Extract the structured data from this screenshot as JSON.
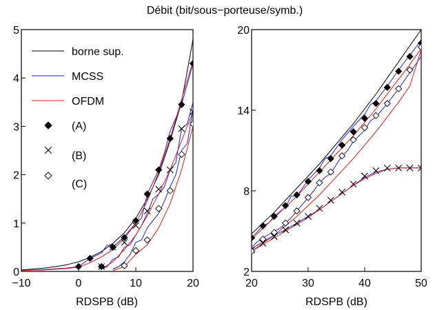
{
  "figure": {
    "title": "Débit (bit/sous−porteuse/symb.)"
  },
  "legend": {
    "items": [
      {
        "key": "bound",
        "label": "borne sup.",
        "kind": "line",
        "color": "#000000"
      },
      {
        "key": "mcss",
        "label": "MCSS",
        "kind": "line",
        "color": "#1f1fdc"
      },
      {
        "key": "ofdm",
        "label": "OFDM",
        "kind": "line",
        "color": "#e01818"
      },
      {
        "key": "A",
        "label": "(A)",
        "kind": "marker",
        "marker": "diamond-filled"
      },
      {
        "key": "B",
        "label": "(B)",
        "kind": "marker",
        "marker": "cross"
      },
      {
        "key": "C",
        "label": "(C)",
        "kind": "marker",
        "marker": "diamond-open"
      }
    ]
  },
  "chart_data": [
    {
      "type": "line",
      "xlabel": "RDSPB (dB)",
      "ylabel": "",
      "xlim": [
        -10,
        20
      ],
      "ylim": [
        0,
        5
      ],
      "xticks": [
        -10,
        0,
        10,
        20
      ],
      "xtick_labels": [
        "−10",
        "0",
        "10",
        "20"
      ],
      "yticks": [
        0,
        1,
        2,
        3,
        4,
        5
      ],
      "ytick_labels": [
        "0",
        "1",
        "2",
        "3",
        "4",
        "5"
      ],
      "grid": false,
      "legend_position": "top-left",
      "series": [
        {
          "key": "bound",
          "color": "#000000",
          "x": [
            -10,
            -8,
            -6,
            -4,
            -2,
            0,
            2,
            4,
            6,
            8,
            10,
            12,
            14,
            16,
            18,
            20
          ],
          "y": [
            0.03,
            0.05,
            0.07,
            0.1,
            0.14,
            0.2,
            0.29,
            0.41,
            0.58,
            0.8,
            1.1,
            1.5,
            2.0,
            2.7,
            3.5,
            4.8
          ]
        },
        {
          "key": "A_mcss",
          "color": "#1f1fdc",
          "x": [
            -10,
            -6,
            -2,
            0,
            2,
            4,
            5,
            6,
            8,
            10,
            11,
            12,
            14,
            15,
            16,
            18,
            20
          ],
          "y": [
            0.02,
            0.04,
            0.07,
            0.1,
            0.27,
            0.38,
            0.55,
            0.5,
            0.72,
            1.0,
            1.1,
            1.6,
            2.1,
            2.45,
            2.9,
            3.45,
            4.3
          ]
        },
        {
          "key": "A_ofdm",
          "color": "#e01818",
          "x": [
            -10,
            -6,
            -2,
            0,
            2,
            4,
            6,
            8,
            10,
            12,
            14,
            16,
            18,
            20
          ],
          "y": [
            0.02,
            0.03,
            0.06,
            0.09,
            0.18,
            0.3,
            0.45,
            0.68,
            1.0,
            1.45,
            2.05,
            2.75,
            3.55,
            4.35
          ]
        },
        {
          "key": "B_mcss",
          "color": "#1f1fdc",
          "x": [
            4,
            5,
            6,
            7,
            8,
            9,
            10,
            11,
            12,
            13,
            14,
            15,
            16,
            17,
            18,
            19,
            20
          ],
          "y": [
            0.05,
            0.1,
            0.25,
            0.3,
            0.5,
            0.55,
            0.75,
            0.95,
            1.2,
            1.5,
            1.6,
            1.75,
            2.1,
            2.25,
            2.95,
            3.05,
            3.5
          ]
        },
        {
          "key": "B_ofdm",
          "color": "#e01818",
          "x": [
            4,
            6,
            8,
            10,
            12,
            14,
            16,
            18,
            20
          ],
          "y": [
            0.05,
            0.2,
            0.45,
            0.75,
            1.15,
            1.6,
            2.1,
            2.7,
            3.3
          ]
        },
        {
          "key": "C_mcss",
          "color": "#1f1fdc",
          "x": [
            6,
            7,
            8,
            9,
            10,
            11,
            12,
            13,
            14,
            15,
            16,
            17,
            18,
            19,
            20
          ],
          "y": [
            0.05,
            0.1,
            0.2,
            0.35,
            0.6,
            0.65,
            0.9,
            1.05,
            1.2,
            1.45,
            1.75,
            2.0,
            2.5,
            2.65,
            3.35
          ]
        },
        {
          "key": "C_ofdm",
          "color": "#e01818",
          "x": [
            6,
            8,
            10,
            12,
            14,
            16,
            18,
            20
          ],
          "y": [
            0.02,
            0.1,
            0.35,
            0.55,
            0.9,
            1.4,
            2.1,
            3.0
          ]
        }
      ],
      "markers": [
        {
          "key": "A",
          "marker": "diamond-filled",
          "x": [
            0,
            2,
            4,
            6,
            8,
            10,
            12,
            14,
            16,
            18,
            20
          ],
          "y": [
            0.1,
            0.27,
            0.1,
            0.5,
            0.7,
            1.05,
            1.6,
            2.1,
            2.75,
            3.45,
            4.3
          ]
        },
        {
          "key": "B",
          "marker": "cross",
          "x": [
            4,
            6,
            8,
            10,
            12,
            14,
            16,
            18,
            20
          ],
          "y": [
            0.1,
            0.5,
            0.6,
            0.95,
            1.25,
            1.7,
            2.1,
            2.95,
            3.3
          ]
        },
        {
          "key": "C",
          "marker": "diamond-open",
          "x": [
            8,
            10,
            12,
            14,
            16,
            18,
            20
          ],
          "y": [
            0.12,
            0.43,
            0.65,
            1.3,
            1.67,
            2.42,
            3.05
          ]
        }
      ]
    },
    {
      "type": "line",
      "xlabel": "RDSPB (dB)",
      "ylabel": "",
      "xlim": [
        20,
        50
      ],
      "ylim": [
        2,
        20
      ],
      "xticks": [
        20,
        30,
        40,
        50
      ],
      "xtick_labels": [
        "20",
        "30",
        "40",
        "50"
      ],
      "yticks": [
        2,
        8,
        14,
        20
      ],
      "ytick_labels": [
        "2",
        "8",
        "14",
        "20"
      ],
      "grid": false,
      "series": [
        {
          "key": "bound",
          "color": "#000000",
          "x": [
            20,
            22,
            24,
            26,
            28,
            30,
            32,
            34,
            36,
            38,
            40,
            42,
            44,
            46,
            48,
            50
          ],
          "y": [
            4.8,
            5.6,
            6.4,
            7.3,
            8.2,
            9.1,
            10.0,
            11.0,
            12.0,
            13.0,
            14.1,
            15.2,
            16.4,
            17.6,
            18.8,
            20.0
          ]
        },
        {
          "key": "A_mcss",
          "color": "#1f1fdc",
          "x": [
            20,
            22,
            23,
            24,
            26,
            27,
            28,
            30,
            32,
            33,
            34,
            36,
            38,
            40,
            41,
            42,
            44,
            46,
            48,
            50
          ],
          "y": [
            4.5,
            5.4,
            5.6,
            6.1,
            6.8,
            7.6,
            7.6,
            8.8,
            9.7,
            10.4,
            10.6,
            11.8,
            12.8,
            13.7,
            14.4,
            14.7,
            15.8,
            17.0,
            18.1,
            19.2
          ]
        },
        {
          "key": "A_ofdm",
          "color": "#e01818",
          "x": [
            20,
            22,
            24,
            26,
            28,
            30,
            32,
            34,
            36,
            38,
            40,
            42,
            44,
            46,
            48,
            50
          ],
          "y": [
            4.4,
            5.2,
            6.0,
            6.8,
            7.6,
            8.5,
            9.4,
            10.3,
            11.2,
            12.1,
            13.1,
            14.1,
            15.2,
            16.3,
            17.4,
            18.6
          ]
        },
        {
          "key": "C_mcss",
          "color": "#1f1fdc",
          "x": [
            20,
            21,
            22,
            24,
            25,
            26,
            27,
            28,
            30,
            31,
            32,
            33,
            34,
            36,
            37,
            38,
            40,
            41,
            42,
            44,
            46,
            48,
            50
          ],
          "y": [
            3.8,
            4.2,
            4.5,
            5.0,
            5.2,
            5.6,
            6.0,
            6.5,
            7.5,
            8.0,
            8.6,
            9.0,
            9.3,
            10.6,
            11.0,
            11.7,
            12.5,
            13.2,
            13.5,
            14.5,
            15.6,
            16.8,
            18.0
          ]
        },
        {
          "key": "C_ofdm",
          "color": "#e01818",
          "x": [
            20,
            22,
            24,
            26,
            28,
            30,
            32,
            34,
            36,
            38,
            40,
            42,
            44,
            46,
            48,
            50
          ],
          "y": [
            3.5,
            4.1,
            4.7,
            5.4,
            6.1,
            6.9,
            7.7,
            8.6,
            9.5,
            10.4,
            11.4,
            12.4,
            13.5,
            14.6,
            15.8,
            18.5
          ]
        },
        {
          "key": "B_mcss",
          "color": "#1f1fdc",
          "x": [
            20,
            22,
            24,
            26,
            28,
            30,
            32,
            34,
            36,
            38,
            40,
            42,
            44,
            46,
            48,
            50
          ],
          "y": [
            3.7,
            4.2,
            4.7,
            5.1,
            5.6,
            6.1,
            6.6,
            7.2,
            7.8,
            8.4,
            9.0,
            9.4,
            9.6,
            9.7,
            9.7,
            9.7
          ]
        },
        {
          "key": "B_ofdm",
          "color": "#e01818",
          "x": [
            20,
            22,
            24,
            26,
            28,
            30,
            32,
            34,
            36,
            38,
            40,
            42,
            44,
            46,
            48,
            50
          ],
          "y": [
            3.5,
            4.0,
            4.5,
            5.0,
            5.5,
            6.0,
            6.6,
            7.2,
            7.8,
            8.4,
            8.9,
            9.3,
            9.6,
            9.7,
            9.7,
            9.7
          ]
        }
      ],
      "markers": [
        {
          "key": "A",
          "marker": "diamond-filled",
          "x": [
            20,
            22,
            24,
            26,
            28,
            30,
            32,
            34,
            36,
            38,
            40,
            42,
            44,
            46,
            48,
            50
          ],
          "y": [
            4.5,
            5.4,
            6.1,
            6.9,
            7.7,
            8.7,
            9.5,
            10.4,
            11.4,
            12.4,
            13.4,
            14.5,
            15.7,
            16.9,
            18.0,
            19.0
          ]
        },
        {
          "key": "B",
          "marker": "cross",
          "x": [
            20,
            22,
            24,
            26,
            28,
            30,
            32,
            34,
            36,
            38,
            40,
            42,
            44,
            46,
            48,
            50
          ],
          "y": [
            3.6,
            4.1,
            4.6,
            5.1,
            5.6,
            6.1,
            6.7,
            7.3,
            7.9,
            8.5,
            9.1,
            9.5,
            9.7,
            9.7,
            9.7,
            9.7
          ]
        },
        {
          "key": "C",
          "marker": "diamond-open",
          "x": [
            20,
            22,
            24,
            26,
            28,
            30,
            32,
            34,
            36,
            38,
            40,
            42,
            44,
            46,
            48,
            50
          ],
          "y": [
            3.5,
            4.4,
            4.9,
            5.6,
            6.5,
            7.5,
            8.6,
            9.4,
            10.6,
            11.8,
            12.7,
            13.6,
            14.5,
            15.6,
            17.0,
            18.7
          ]
        }
      ]
    }
  ]
}
